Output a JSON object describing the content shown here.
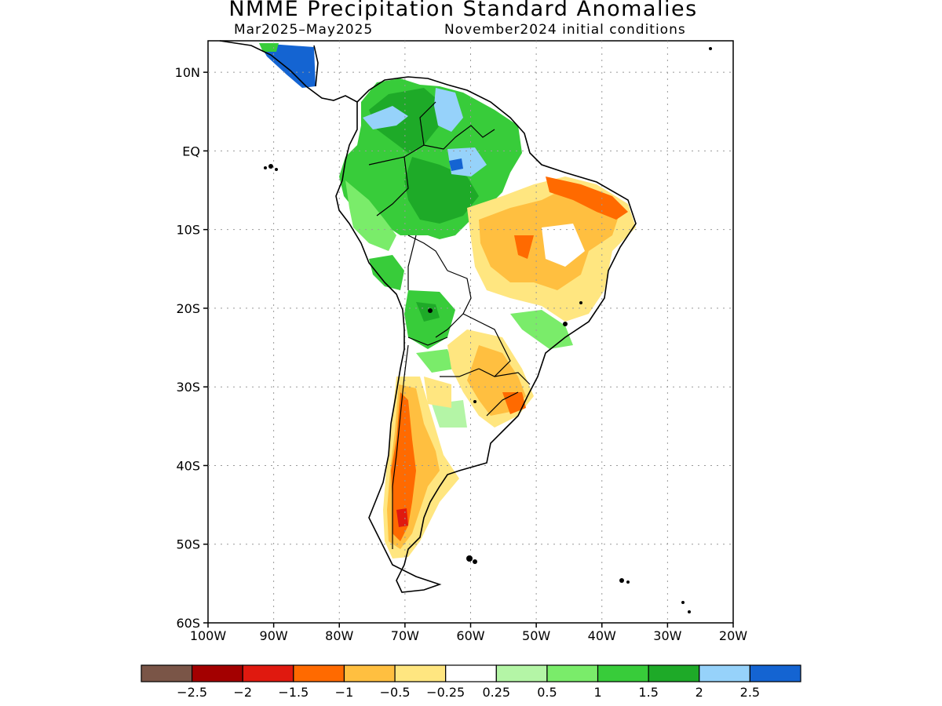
{
  "title": "NMME Precipitation Standard Anomalies",
  "subtitle_left": "Mar2025–May2025",
  "subtitle_right": "November2024 initial conditions",
  "axes": {
    "lat_ticks": [
      "10N",
      "EQ",
      "10S",
      "20S",
      "30S",
      "40S",
      "50S",
      "60S"
    ],
    "lon_ticks": [
      "100W",
      "90W",
      "80W",
      "70W",
      "60W",
      "50W",
      "40W",
      "30W",
      "20W"
    ],
    "lat_range": [
      -60,
      14
    ],
    "lon_range": [
      -100,
      -20
    ],
    "grid": true
  },
  "colorbar": {
    "colors": [
      "#7a5547",
      "#a30000",
      "#e0190f",
      "#ff6a00",
      "#ffbf40",
      "#ffe680",
      "#ffffff",
      "#b4f5a6",
      "#7aec6a",
      "#38cc3a",
      "#1eaa28",
      "#96d2fa",
      "#1464d2"
    ],
    "tick_labels": [
      "−2.5",
      "−2",
      "−1.5",
      "−1",
      "−0.5",
      "−0.25",
      "0.25",
      "0.5",
      "1",
      "1.5",
      "2",
      "2.5"
    ]
  },
  "map_data": {
    "region": "South America",
    "anomaly_areas": [
      {
        "area": "Northern South America (Colombia, Venezuela, western Amazon)",
        "category": "1 to 2"
      },
      {
        "area": "Guyana / northern Brazil patches",
        "category": "2 to 2.5"
      },
      {
        "area": "Central America",
        "category": "2 to 2.5"
      },
      {
        "area": "Northeastern Brazil",
        "category": "-1.5 to -0.25"
      },
      {
        "area": "Southern Brazil / Uruguay",
        "category": "-1.5 to -0.5"
      },
      {
        "area": "Central/southern Chile and western Argentina",
        "category": "-2 to -0.5"
      },
      {
        "area": "Bolivia / Paraguay patches",
        "category": "0.5 to 1.5"
      }
    ]
  }
}
